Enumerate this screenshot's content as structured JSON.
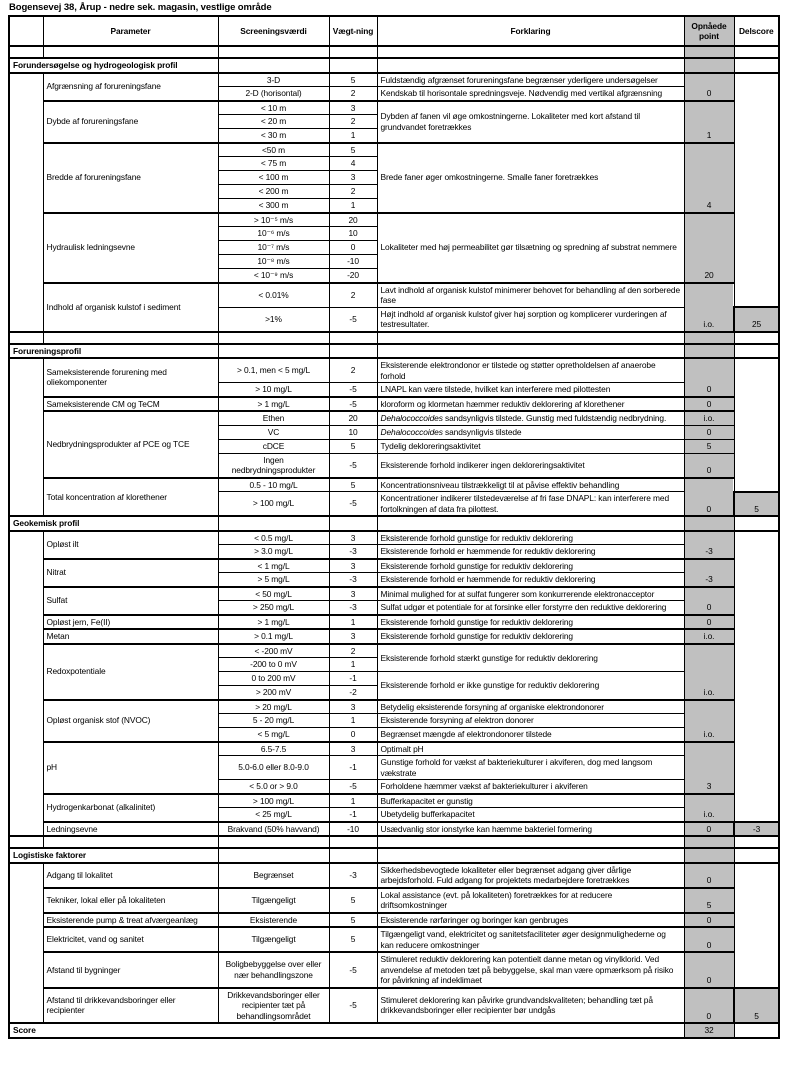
{
  "title": "Bogensevej 38, Årup - nedre sek. magasin, vestlige område",
  "columns": {
    "parameter": "Parameter",
    "screening": "Screeningsværdi",
    "weight": "Vægt-ning",
    "explanation": "Forklaring",
    "points": "Opnåede point",
    "delscore": "Delscore"
  },
  "score": {
    "label": "Score",
    "value": "32"
  },
  "colors": {
    "shade": "#c0c0c0",
    "border": "#000000"
  },
  "sections": [
    {
      "label": "Forundersøgelse og hydrogeologisk profil",
      "delscore": "25",
      "spacer_after": true,
      "params": [
        {
          "name": "Afgrænsning af forureningsfane",
          "pts": "0",
          "rows": [
            {
              "sv": "3-D",
              "w": "5",
              "expl": "Fuldstændig afgrænset forureningsfane begrænser yderligere undersøgelser"
            },
            {
              "sv": "2-D (horisontal)",
              "w": "2",
              "expl": "Kendskab til horisontale spredningsveje. Nødvendig med vertikal afgrænsning"
            }
          ]
        },
        {
          "name": "Dybde af forureningsfane",
          "pts": "1",
          "rows": [
            {
              "sv": "< 10 m",
              "w": "3",
              "expl": "Dybden af fanen vil øge omkostningerne. Lokaliteter med kort afstand til grundvandet foretrækkes",
              "expl_span": 3
            },
            {
              "sv": "< 20 m",
              "w": "2"
            },
            {
              "sv": "< 30 m",
              "w": "1"
            }
          ]
        },
        {
          "name": "Bredde af forureningsfane",
          "pts": "4",
          "rows": [
            {
              "sv": "<50 m",
              "w": "5",
              "expl": "Brede faner øger omkostningerne. Smalle faner foretrækkes",
              "expl_span": 5
            },
            {
              "sv": "< 75 m",
              "w": "4"
            },
            {
              "sv": "< 100 m",
              "w": "3"
            },
            {
              "sv": "< 200 m",
              "w": "2"
            },
            {
              "sv": "< 300 m",
              "w": "1"
            }
          ]
        },
        {
          "name": "Hydraulisk ledningsevne",
          "pts": "20",
          "rows": [
            {
              "sv": "> 10⁻⁵ m/s",
              "w": "20",
              "expl": "Lokaliteter med høj permeabilitet gør tilsætning og spredning af substrat nemmere",
              "expl_span": 5
            },
            {
              "sv": "10⁻⁶ m/s",
              "w": "10"
            },
            {
              "sv": "10⁻⁷ m/s",
              "w": "0"
            },
            {
              "sv": "10⁻⁸ m/s",
              "w": "-10"
            },
            {
              "sv": "< 10⁻⁹ m/s",
              "w": "-20"
            }
          ]
        },
        {
          "name": "Indhold af organisk kulstof i sediment",
          "pts": "i.o.",
          "rows": [
            {
              "sv": "< 0.01%",
              "w": "2",
              "expl": "Lavt indhold af organisk kulstof minimerer behovet for behandling af den sorberede fase"
            },
            {
              "sv": ">1%",
              "w": "-5",
              "expl": "Højt indhold af organisk kulstof giver høj sorption og komplicerer vurderingen af testresultater."
            }
          ]
        }
      ]
    },
    {
      "label": "Forureningsprofil",
      "delscore": "5",
      "spacer_after": false,
      "params": [
        {
          "name": "Sameksisterende forurening med oliekomponenter",
          "pts": "0",
          "rows": [
            {
              "sv": "> 0.1, men < 5 mg/L",
              "w": "2",
              "expl": "Eksisterende elektrondonor er tilstede og støtter opretholdelsen af anaerobe forhold"
            },
            {
              "sv": "> 10 mg/L",
              "w": "-5",
              "expl": "LNAPL kan være tilstede, hvilket kan interferere med pilottesten"
            }
          ]
        },
        {
          "name": "Sameksisterende CM og TeCM",
          "pts": "0",
          "rows": [
            {
              "sv": "> 1 mg/L",
              "w": "-5",
              "expl": "kloroform og klormetan hæmmer reduktiv deklorering af klorethener"
            }
          ]
        },
        {
          "name": "Nedbrydningsprodukter af PCE og TCE",
          "rows": [
            {
              "sv": "Ethen",
              "w": "20",
              "expl_italic": "Dehalococcoides",
              "expl": " sandsynligvis tilstede. Gunstig med fuldstændig nedbrydning.",
              "pts": "i.o."
            },
            {
              "sv": "VC",
              "w": "10",
              "expl_italic": "Dehalococcoides",
              "expl": " sandsynligvis tilstede",
              "pts": "0"
            },
            {
              "sv": "cDCE",
              "w": "5",
              "expl": "Tydelig dekloreringsaktivitet",
              "pts": "5"
            },
            {
              "sv": "Ingen nedbrydningsprodukter",
              "w": "-5",
              "expl": "Eksisterende forhold indikerer ingen dekloreringsaktivitet",
              "pts": "0"
            }
          ]
        },
        {
          "name": "Total koncentration af klorethener",
          "pts": "0",
          "rows": [
            {
              "sv": "0.5 - 10 mg/L",
              "w": "5",
              "expl": "Koncentrationsniveau tilstrækkeligt til at påvise effektiv behandling"
            },
            {
              "sv": "> 100 mg/L",
              "w": "-5",
              "expl": "Koncentrationer indikerer tilstedeværelse af fri fase DNAPL: kan interferere med fortolkningen af data fra pilottest."
            }
          ]
        }
      ]
    },
    {
      "label": "Geokemisk profil",
      "delscore": "-3",
      "spacer_after": true,
      "params": [
        {
          "name": "Opløst ilt",
          "pts": "-3",
          "rows": [
            {
              "sv": "< 0.5 mg/L",
              "w": "3",
              "expl": "Eksisterende forhold gunstige for reduktiv deklorering"
            },
            {
              "sv": "> 3.0 mg/L",
              "w": "-3",
              "expl": "Eksisterende forhold er hæmmende for reduktiv deklorering"
            }
          ]
        },
        {
          "name": "Nitrat",
          "pts": "-3",
          "rows": [
            {
              "sv": "< 1 mg/L",
              "w": "3",
              "expl": "Eksisterende forhold gunstige for reduktiv deklorering"
            },
            {
              "sv": "> 5 mg/L",
              "w": "-3",
              "expl": "Eksisterende forhold er hæmmende for reduktiv deklorering"
            }
          ]
        },
        {
          "name": "Sulfat",
          "pts": "0",
          "rows": [
            {
              "sv": "< 50 mg/L",
              "w": "3",
              "expl": "Minimal mulighed for at sulfat fungerer som konkurrerende elektronacceptor"
            },
            {
              "sv": "> 250 mg/L",
              "w": "-3",
              "expl": "Sulfat udgør et potentiale for at forsinke eller forstyrre den reduktive deklorering"
            }
          ]
        },
        {
          "name": "Opløst jern, Fe(II)",
          "pts": "0",
          "rows": [
            {
              "sv": "> 1 mg/L",
              "w": "1",
              "expl": "Eksisterende forhold gunstige for reduktiv deklorering"
            }
          ]
        },
        {
          "name": "Metan",
          "pts": "i.o.",
          "rows": [
            {
              "sv": "> 0.1 mg/L",
              "w": "3",
              "expl": "Eksisterende forhold gunstige for reduktiv deklorering"
            }
          ]
        },
        {
          "name": "Redoxpotentiale",
          "pts": "i.o.",
          "rows": [
            {
              "sv": "< -200 mV",
              "w": "2",
              "expl": "Eksisterende forhold stærkt gunstige for reduktiv deklorering",
              "expl_span": 2
            },
            {
              "sv": "-200 to 0 mV",
              "w": "1"
            },
            {
              "sv": "0 to 200 mV",
              "w": "-1",
              "expl": "Eksisterende forhold er ikke gunstige for reduktiv deklorering",
              "expl_span": 2
            },
            {
              "sv": "> 200 mV",
              "w": "-2"
            }
          ]
        },
        {
          "name": "Opløst organisk stof (NVOC)",
          "pts": "i.o.",
          "rows": [
            {
              "sv": "> 20 mg/L",
              "w": "3",
              "expl": "Betydelig eksisterende forsyning af organiske elektrondonorer"
            },
            {
              "sv": "5 - 20 mg/L",
              "w": "1",
              "expl": "Eksisterende forsyning af elektron donorer"
            },
            {
              "sv": "< 5 mg/L",
              "w": "0",
              "expl": "Begrænset mængde af elektrondonorer tilstede"
            }
          ]
        },
        {
          "name": "pH",
          "pts": "3",
          "rows": [
            {
              "sv": "6.5-7.5",
              "w": "3",
              "expl": "Optimalt pH"
            },
            {
              "sv": "5.0-6.0 eller 8.0-9.0",
              "w": "-1",
              "expl": "Gunstige forhold for vækst af bakteriekulturer i akviferen, dog med langsom vækstrate"
            },
            {
              "sv": "< 5.0 or > 9.0",
              "w": "-5",
              "expl": "Forholdene hæmmer vækst af bakteriekulturer i akviferen"
            }
          ]
        },
        {
          "name": "Hydrogenkarbonat (alkalinitet)",
          "pts": "i.o.",
          "rows": [
            {
              "sv": "> 100 mg/L",
              "w": "1",
              "expl": "Bufferkapacitet er gunstig"
            },
            {
              "sv": "< 25 mg/L",
              "w": "-1",
              "expl": "Ubetydelig bufferkapacitet"
            }
          ]
        },
        {
          "name": "Ledningsevne",
          "pts": "0",
          "rows": [
            {
              "sv": "Brakvand (50% havvand)",
              "w": "-10",
              "expl": "Usædvanlig stor ionstyrke kan hæmme bakteriel formering"
            }
          ]
        }
      ]
    },
    {
      "label": "Logistiske faktorer",
      "delscore": "5",
      "spacer_after": false,
      "params": [
        {
          "name": "Adgang til lokalitet",
          "pts": "0",
          "rows": [
            {
              "sv": "Begrænset",
              "w": "-3",
              "expl": "Sikkerhedsbevogtede lokaliteter eller begrænset adgang giver dårlige arbejdsforhold. Fuld adgang for projektets medarbejdere foretrækkes"
            }
          ]
        },
        {
          "name": "Tekniker, lokal eller på lokaliteten",
          "pts": "5",
          "rows": [
            {
              "sv": "Tilgængeligt",
              "w": "5",
              "expl": "Lokal assistance (evt. på lokaliteten) foretrækkes for at reducere driftsomkostninger"
            }
          ]
        },
        {
          "name": "Eksisterende pump & treat afværgeanlæg",
          "pts": "0",
          "rows": [
            {
              "sv": "Eksisterende",
              "w": "5",
              "expl": "Eksisterende rørføringer og boringer kan genbruges"
            }
          ]
        },
        {
          "name": "Elektricitet, vand og sanitet",
          "pts": "0",
          "rows": [
            {
              "sv": "Tilgængeligt",
              "w": "5",
              "expl": "Tilgængeligt vand, elektricitet og sanitetsfaciliteter øger designmulighederne og kan reducere omkostninger"
            }
          ]
        },
        {
          "name": "Afstand til bygninger",
          "pts": "0",
          "rows": [
            {
              "sv": "Boligbebyggelse over eller nær behandlingszone",
              "w": "-5",
              "expl": "Stimuleret reduktiv deklorering kan potentielt danne metan og vinylklorid. Ved anvendelse af metoden tæt på bebyggelse, skal man være opmærksom på risiko for påvirkning af indeklimaet"
            }
          ]
        },
        {
          "name": "Afstand til drikkevandsboringer eller recipienter",
          "pts": "0",
          "rows": [
            {
              "sv": "Drikkevandsboringer eller recipienter tæt på behandlingsområdet",
              "w": "-5",
              "expl": "Stimuleret deklorering kan påvirke grundvandskvaliteten; behandling tæt på drikkevandsboringer eller recipienter bør undgås"
            }
          ]
        }
      ]
    }
  ]
}
